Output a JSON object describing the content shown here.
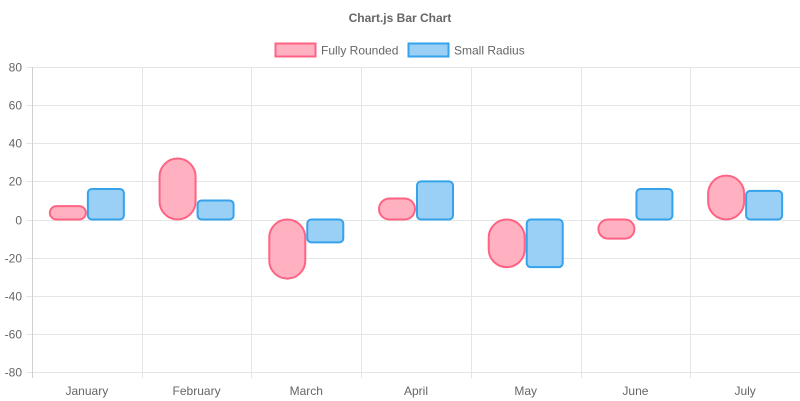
{
  "chart_data": {
    "type": "bar",
    "title": "Chart.js Bar Chart",
    "categories": [
      "January",
      "February",
      "March",
      "April",
      "May",
      "June",
      "July"
    ],
    "series": [
      {
        "name": "Fully Rounded",
        "values": [
          7,
          32,
          -31,
          11,
          -25,
          -10,
          23
        ],
        "fill": "#ffb1c1",
        "stroke": "#ff6384"
      },
      {
        "name": "Small Radius",
        "values": [
          16,
          10,
          -12,
          20,
          -25,
          16,
          15
        ],
        "fill": "#9ad0f5",
        "stroke": "#36a2eb"
      }
    ],
    "ylim": [
      -80,
      80
    ],
    "yticks": [
      80,
      60,
      40,
      20,
      0,
      -20,
      -40,
      -60,
      -80
    ],
    "legend_position": "top",
    "grid": true
  }
}
